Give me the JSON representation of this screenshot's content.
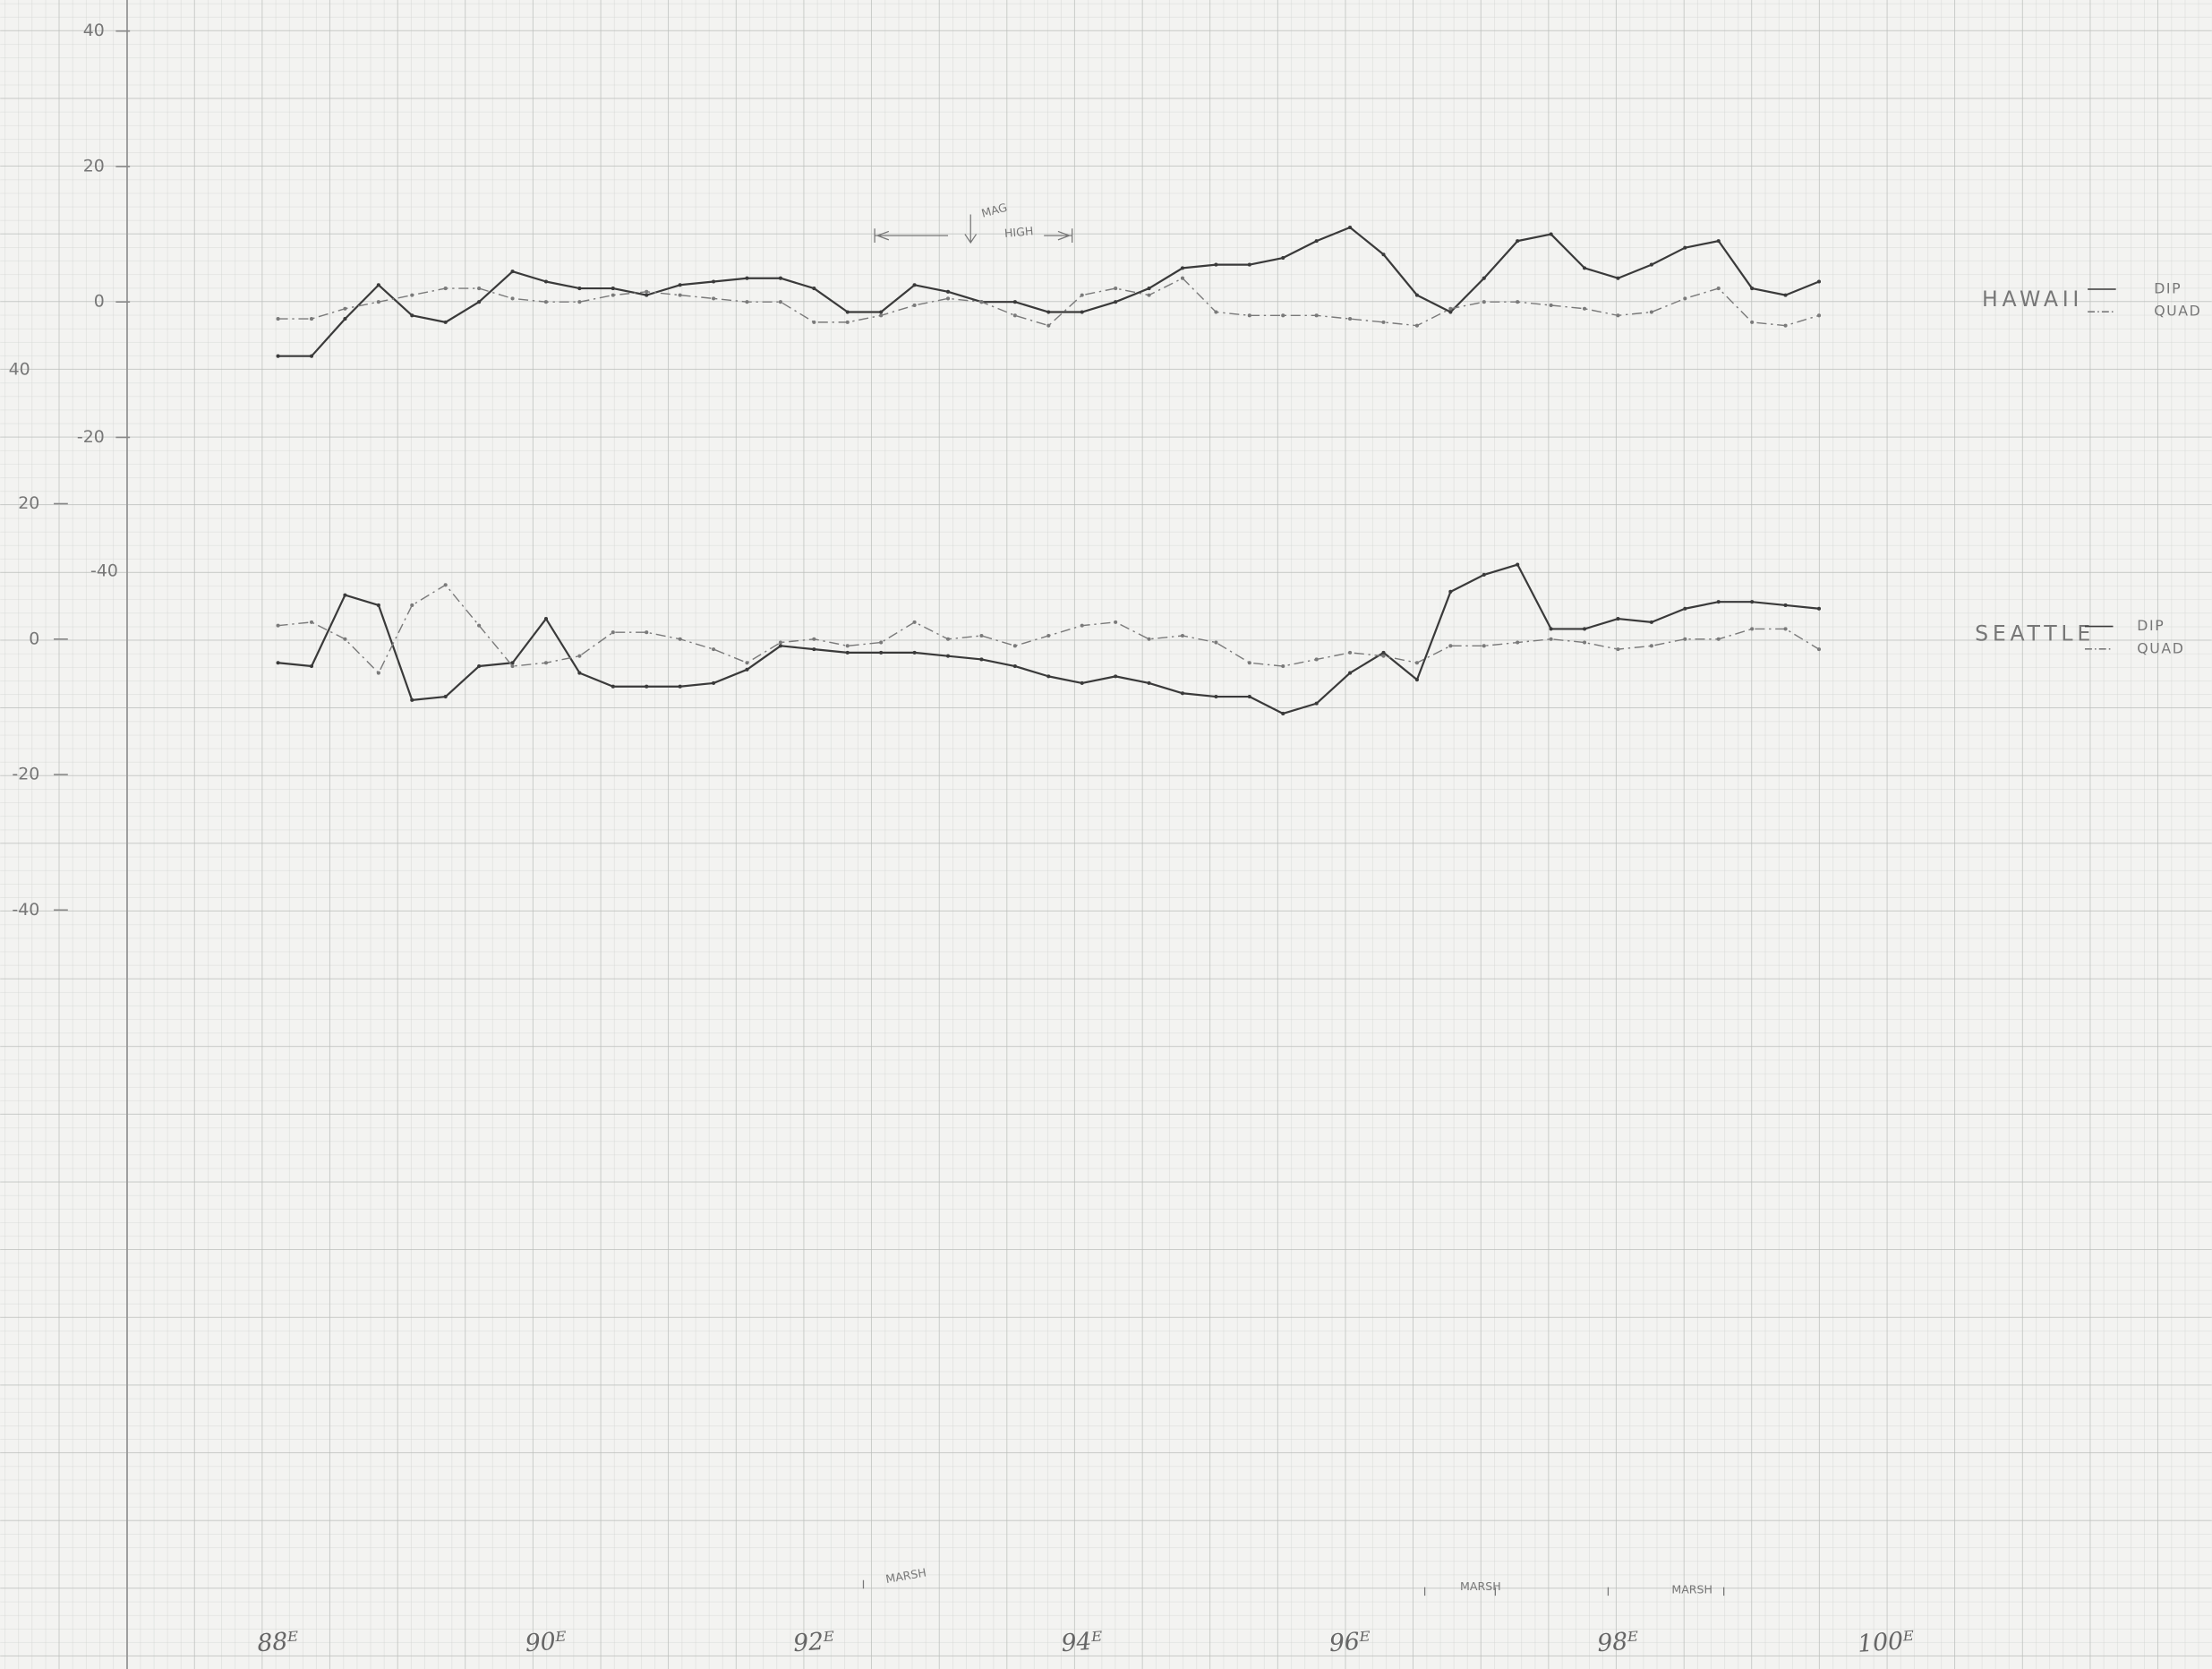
{
  "chart_data": [
    {
      "type": "line",
      "title": "HAWAII",
      "x": [
        88,
        88.25,
        88.5,
        88.75,
        89,
        89.25,
        89.5,
        89.75,
        90,
        90.25,
        90.5,
        90.75,
        91,
        91.25,
        91.5,
        91.75,
        92,
        92.25,
        92.5,
        92.75,
        93,
        93.25,
        93.5,
        93.75,
        94,
        94.25,
        94.5,
        94.75,
        95,
        95.25,
        95.5,
        95.75,
        96,
        96.25,
        96.5,
        96.75,
        97,
        97.25,
        97.5,
        97.75,
        98,
        98.25,
        98.5,
        98.75,
        99,
        99.25,
        99.5
      ],
      "series": [
        {
          "name": "DIP",
          "color": "#3a3a3a",
          "values": [
            -8,
            -8,
            -2.5,
            2.5,
            -2,
            -3,
            0,
            4.5,
            3,
            2,
            2,
            1,
            2.5,
            3,
            3.5,
            3.5,
            2,
            -1.5,
            -1.5,
            2.5,
            1.5,
            0,
            0,
            -1.5,
            -1.5,
            0,
            2,
            5,
            5.5,
            5.5,
            6.5,
            9,
            11,
            7,
            1,
            -1.5,
            3.5,
            9,
            10,
            5,
            3.5,
            5.5,
            8,
            9,
            2,
            1,
            3
          ]
        },
        {
          "name": "QUAD",
          "color": "#7a7a7a",
          "values": [
            -2.5,
            -2.5,
            -1,
            0,
            1,
            2,
            2,
            0.5,
            0,
            0,
            1,
            1.5,
            1,
            0.5,
            0,
            0,
            -3,
            -3,
            -2,
            -0.5,
            0.5,
            0,
            -2,
            -3.5,
            1,
            2,
            1,
            3.5,
            -1.5,
            -2,
            -2,
            -2,
            -2.5,
            -3,
            -3.5,
            -1,
            0,
            0,
            -0.5,
            -1,
            -2,
            -1.5,
            0.5,
            2,
            -3,
            -3.5,
            -2
          ]
        }
      ],
      "xlim": [
        88,
        100
      ],
      "ylim": [
        -20,
        40
      ],
      "yticks": [
        -20,
        0,
        20,
        40
      ]
    },
    {
      "type": "line",
      "title": "SEATTLE",
      "x": [
        88,
        88.25,
        88.5,
        88.75,
        89,
        89.25,
        89.5,
        89.75,
        90,
        90.25,
        90.5,
        90.75,
        91,
        91.25,
        91.5,
        91.75,
        92,
        92.25,
        92.5,
        92.75,
        93,
        93.25,
        93.5,
        93.75,
        94,
        94.25,
        94.5,
        94.75,
        95,
        95.25,
        95.5,
        95.75,
        96,
        96.25,
        96.5,
        96.75,
        97,
        97.25,
        97.5,
        97.75,
        98,
        98.25,
        98.5,
        98.75,
        99,
        99.25,
        99.5
      ],
      "series": [
        {
          "name": "DIP",
          "color": "#3a3a3a",
          "values": [
            -3.5,
            -4,
            6.5,
            5,
            -9,
            -8.5,
            -4,
            -3.5,
            3,
            -5,
            -7,
            -7,
            -7,
            -6.5,
            -4.5,
            -1,
            -1.5,
            -2,
            -2,
            -2,
            -2.5,
            -3,
            -4,
            -5.5,
            -6.5,
            -5.5,
            -6.5,
            -8,
            -8.5,
            -8.5,
            -11,
            -9.5,
            -5,
            -2,
            -6,
            7,
            9.5,
            11,
            1.5,
            1.5,
            3,
            2.5,
            4.5,
            5.5,
            5.5,
            5,
            4.5
          ]
        },
        {
          "name": "QUAD",
          "color": "#7a7a7a",
          "values": [
            2,
            2.5,
            0,
            -5,
            5,
            8,
            2,
            -4,
            -3.5,
            -2.5,
            1,
            1,
            0,
            -1.5,
            -3.5,
            -0.5,
            0,
            -1,
            -0.5,
            2.5,
            0,
            0.5,
            -1,
            0.5,
            2,
            2.5,
            0,
            0.5,
            -0.5,
            -3.5,
            -4,
            -3,
            -2,
            -2.5,
            -3.5,
            -1,
            -1,
            -0.5,
            0,
            -0.5,
            -1.5,
            -1,
            0,
            0,
            1.5,
            1.5,
            -1.5
          ]
        }
      ],
      "xlim": [
        88,
        100
      ],
      "ylim": [
        -40,
        20
      ],
      "yticks": [
        -40,
        -20,
        0,
        20
      ],
      "xticks": [
        {
          "value": 88,
          "label": "88ᴱ"
        },
        {
          "value": 90,
          "label": "90ᴱ"
        },
        {
          "value": 92,
          "label": "92ᴱ"
        },
        {
          "value": 94,
          "label": "94ᴱ"
        },
        {
          "value": 96,
          "label": "96ᴱ"
        },
        {
          "value": 98,
          "label": "98ᴱ"
        },
        {
          "value": 100,
          "label": "100ᴱ"
        }
      ]
    }
  ],
  "annotations": [
    "MAG",
    "HIGH",
    "MARSH",
    "MARSH",
    "MARSH",
    "40",
    "-40"
  ]
}
